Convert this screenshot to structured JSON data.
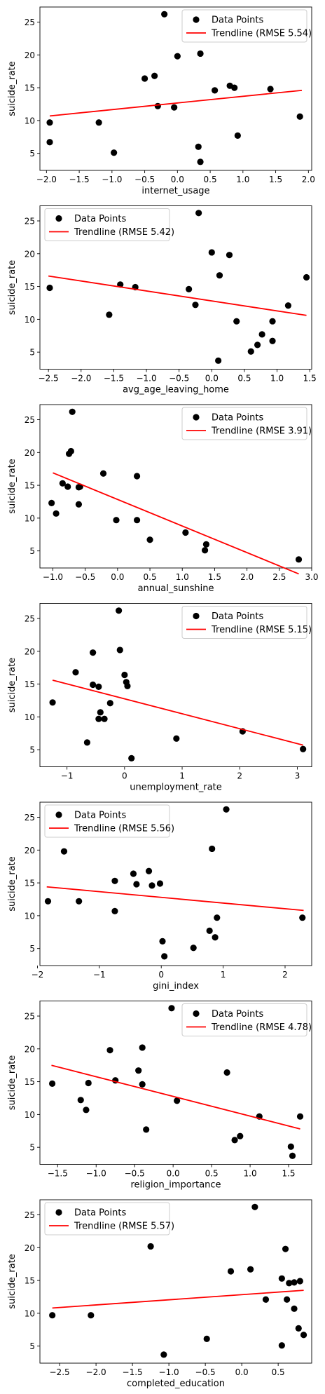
{
  "chart_data": [
    {
      "type": "scatter",
      "xlabel": "internet_usage",
      "ylabel": "suicide_rate",
      "xlim": [
        -2.1,
        2.05
      ],
      "ylim": [
        2.4,
        27.3
      ],
      "xticks": [
        -2.0,
        -1.5,
        -1.0,
        -0.5,
        0.0,
        0.5,
        1.0,
        1.5,
        2.0
      ],
      "yticks": [
        5,
        10,
        15,
        20,
        25
      ],
      "legend_loc": "top-right",
      "legend": {
        "points": "Data Points",
        "line": "Trendline (RMSE 5.54)"
      },
      "trend": {
        "x": [
          -1.95,
          1.9
        ],
        "y": [
          10.7,
          14.6
        ]
      },
      "points": [
        [
          -0.2,
          26.2
        ],
        [
          0.35,
          20.2
        ],
        [
          0.0,
          19.8
        ],
        [
          -0.35,
          16.8
        ],
        [
          -0.5,
          16.4
        ],
        [
          0.8,
          15.3
        ],
        [
          0.87,
          15.0
        ],
        [
          1.42,
          14.8
        ],
        [
          0.57,
          14.6
        ],
        [
          -0.3,
          12.2
        ],
        [
          -0.05,
          12.0
        ],
        [
          1.87,
          10.6
        ],
        [
          -1.95,
          9.7
        ],
        [
          -1.2,
          9.7
        ],
        [
          0.92,
          7.7
        ],
        [
          -1.95,
          6.7
        ],
        [
          0.32,
          6.0
        ],
        [
          -0.97,
          5.1
        ],
        [
          0.35,
          3.7
        ]
      ]
    },
    {
      "type": "scatter",
      "xlabel": "avg_age_leaving_home",
      "ylabel": "suicide_rate",
      "xlim": [
        -2.63,
        1.53
      ],
      "ylim": [
        2.4,
        27.3
      ],
      "xticks": [
        -2.5,
        -2.0,
        -1.5,
        -1.0,
        -0.5,
        0.0,
        0.5,
        1.0,
        1.5
      ],
      "yticks": [
        5,
        10,
        15,
        20,
        25
      ],
      "legend_loc": "top-left",
      "legend": {
        "points": "Data Points",
        "line": "Trendline (RMSE 5.42)"
      },
      "trend": {
        "x": [
          -2.5,
          1.45
        ],
        "y": [
          16.6,
          10.6
        ]
      },
      "points": [
        [
          -0.2,
          26.2
        ],
        [
          0.0,
          20.2
        ],
        [
          0.27,
          19.8
        ],
        [
          0.12,
          16.7
        ],
        [
          1.45,
          16.4
        ],
        [
          -1.4,
          15.3
        ],
        [
          -2.48,
          14.8
        ],
        [
          -1.17,
          14.9
        ],
        [
          -0.35,
          14.6
        ],
        [
          -0.25,
          12.2
        ],
        [
          1.17,
          12.1
        ],
        [
          -1.57,
          10.7
        ],
        [
          0.38,
          9.7
        ],
        [
          0.93,
          9.7
        ],
        [
          0.77,
          7.7
        ],
        [
          0.93,
          6.7
        ],
        [
          0.7,
          6.1
        ],
        [
          0.6,
          5.1
        ],
        [
          0.1,
          3.7
        ]
      ]
    },
    {
      "type": "scatter",
      "xlabel": "annual_sunshine",
      "ylabel": "suicide_rate",
      "xlim": [
        -1.2,
        3.0
      ],
      "ylim": [
        2.4,
        27.3
      ],
      "xticks": [
        -1.0,
        -0.5,
        0.0,
        0.5,
        1.0,
        1.5,
        2.0,
        2.5,
        3.0
      ],
      "yticks": [
        5,
        10,
        15,
        20,
        25
      ],
      "legend_loc": "top-right",
      "legend": {
        "points": "Data Points",
        "line": "Trendline (RMSE 3.91)"
      },
      "trend": {
        "x": [
          -1.0,
          2.8
        ],
        "y": [
          16.9,
          1.5
        ]
      },
      "points": [
        [
          -0.7,
          26.2
        ],
        [
          -0.72,
          20.2
        ],
        [
          -0.75,
          19.8
        ],
        [
          -0.22,
          16.8
        ],
        [
          0.3,
          16.4
        ],
        [
          -0.85,
          15.3
        ],
        [
          -0.77,
          14.8
        ],
        [
          -0.6,
          14.7
        ],
        [
          -0.58,
          14.8
        ],
        [
          -1.02,
          12.3
        ],
        [
          -0.6,
          12.1
        ],
        [
          -0.95,
          10.7
        ],
        [
          -0.02,
          9.7
        ],
        [
          0.3,
          9.7
        ],
        [
          1.05,
          7.8
        ],
        [
          0.5,
          6.7
        ],
        [
          1.37,
          6.0
        ],
        [
          1.35,
          5.1
        ],
        [
          2.8,
          3.7
        ]
      ]
    },
    {
      "type": "scatter",
      "xlabel": "unemployment_rate",
      "ylabel": "suicide_rate",
      "xlim": [
        -1.47,
        3.25
      ],
      "ylim": [
        2.4,
        27.3
      ],
      "xticks": [
        -1,
        0,
        1,
        2,
        3
      ],
      "yticks": [
        5,
        10,
        15,
        20,
        25
      ],
      "legend_loc": "top-right",
      "legend": {
        "points": "Data Points",
        "line": "Trendline (RMSE 5.15)"
      },
      "trend": {
        "x": [
          -1.25,
          3.1
        ],
        "y": [
          15.6,
          5.7
        ]
      },
      "points": [
        [
          -0.1,
          26.2
        ],
        [
          -0.08,
          20.2
        ],
        [
          -0.55,
          19.8
        ],
        [
          -0.85,
          16.8
        ],
        [
          0.0,
          16.4
        ],
        [
          0.03,
          15.3
        ],
        [
          0.05,
          14.7
        ],
        [
          -0.55,
          14.9
        ],
        [
          -0.45,
          14.6
        ],
        [
          -1.25,
          12.2
        ],
        [
          -0.25,
          12.1
        ],
        [
          -0.42,
          10.7
        ],
        [
          -0.45,
          9.7
        ],
        [
          -0.35,
          9.7
        ],
        [
          2.05,
          7.8
        ],
        [
          0.9,
          6.7
        ],
        [
          -0.65,
          6.1
        ],
        [
          3.1,
          5.1
        ],
        [
          0.12,
          3.7
        ]
      ]
    },
    {
      "type": "scatter",
      "xlabel": "gini_index",
      "ylabel": "suicide_rate",
      "xlim": [
        -1.96,
        2.43
      ],
      "ylim": [
        2.4,
        27.3
      ],
      "xticks": [
        -2,
        -1,
        0,
        1,
        2
      ],
      "yticks": [
        5,
        10,
        15,
        20,
        25
      ],
      "legend_loc": "top-left",
      "legend": {
        "points": "Data Points",
        "line": "Trendline (RMSE 5.56)"
      },
      "trend": {
        "x": [
          -1.85,
          2.3
        ],
        "y": [
          14.4,
          10.8
        ]
      },
      "points": [
        [
          1.05,
          26.2
        ],
        [
          0.82,
          20.2
        ],
        [
          -1.57,
          19.8
        ],
        [
          -0.2,
          16.8
        ],
        [
          -0.45,
          16.4
        ],
        [
          -0.75,
          15.3
        ],
        [
          -0.4,
          14.8
        ],
        [
          -0.02,
          14.9
        ],
        [
          -0.15,
          14.6
        ],
        [
          -1.83,
          12.2
        ],
        [
          -1.33,
          12.2
        ],
        [
          -0.75,
          10.7
        ],
        [
          0.9,
          9.7
        ],
        [
          2.28,
          9.7
        ],
        [
          0.78,
          7.7
        ],
        [
          0.87,
          6.7
        ],
        [
          0.02,
          6.1
        ],
        [
          0.52,
          5.1
        ],
        [
          0.05,
          3.8
        ]
      ]
    },
    {
      "type": "scatter",
      "xlabel": "religion_importance",
      "ylabel": "suicide_rate",
      "xlim": [
        -1.73,
        1.8
      ],
      "ylim": [
        2.4,
        27.3
      ],
      "xticks": [
        -1.5,
        -1.0,
        -0.5,
        0.0,
        0.5,
        1.0,
        1.5
      ],
      "yticks": [
        5,
        10,
        15,
        20,
        25
      ],
      "legend_loc": "top-right",
      "legend": {
        "points": "Data Points",
        "line": "Trendline (RMSE 4.78)"
      },
      "trend": {
        "x": [
          -1.58,
          1.65
        ],
        "y": [
          17.5,
          7.8
        ]
      },
      "points": [
        [
          -0.02,
          26.2
        ],
        [
          -0.4,
          20.2
        ],
        [
          -0.82,
          19.8
        ],
        [
          -0.45,
          16.7
        ],
        [
          0.7,
          16.4
        ],
        [
          -0.75,
          15.2
        ],
        [
          -1.57,
          14.7
        ],
        [
          -1.1,
          14.8
        ],
        [
          -0.4,
          14.6
        ],
        [
          -1.2,
          12.2
        ],
        [
          0.05,
          12.1
        ],
        [
          -1.13,
          10.7
        ],
        [
          1.12,
          9.7
        ],
        [
          1.65,
          9.7
        ],
        [
          -0.35,
          7.7
        ],
        [
          0.87,
          6.7
        ],
        [
          0.8,
          6.1
        ],
        [
          1.53,
          5.1
        ],
        [
          1.55,
          3.7
        ]
      ]
    },
    {
      "type": "scatter",
      "xlabel": "completed_education",
      "ylabel": "suicide_rate",
      "xlim": [
        -2.77,
        0.96
      ],
      "ylim": [
        2.4,
        27.3
      ],
      "xticks": [
        -2.5,
        -2.0,
        -1.5,
        -1.0,
        -0.5,
        0.0,
        0.5
      ],
      "yticks": [
        5,
        10,
        15,
        20,
        25
      ],
      "legend_loc": "top-left",
      "legend": {
        "points": "Data Points",
        "line": "Trendline (RMSE 5.57)"
      },
      "trend": {
        "x": [
          -2.6,
          0.85
        ],
        "y": [
          10.8,
          13.5
        ]
      },
      "points": [
        [
          0.18,
          26.2
        ],
        [
          -1.25,
          20.2
        ],
        [
          0.6,
          19.8
        ],
        [
          0.12,
          16.7
        ],
        [
          -0.15,
          16.4
        ],
        [
          0.55,
          15.3
        ],
        [
          0.8,
          14.9
        ],
        [
          0.72,
          14.7
        ],
        [
          0.65,
          14.6
        ],
        [
          0.33,
          12.1
        ],
        [
          0.62,
          12.1
        ],
        [
          0.72,
          10.7
        ],
        [
          -2.6,
          9.7
        ],
        [
          -2.07,
          9.7
        ],
        [
          0.78,
          7.7
        ],
        [
          0.85,
          6.7
        ],
        [
          -0.48,
          6.1
        ],
        [
          0.55,
          5.1
        ],
        [
          -1.07,
          3.7
        ]
      ]
    }
  ]
}
